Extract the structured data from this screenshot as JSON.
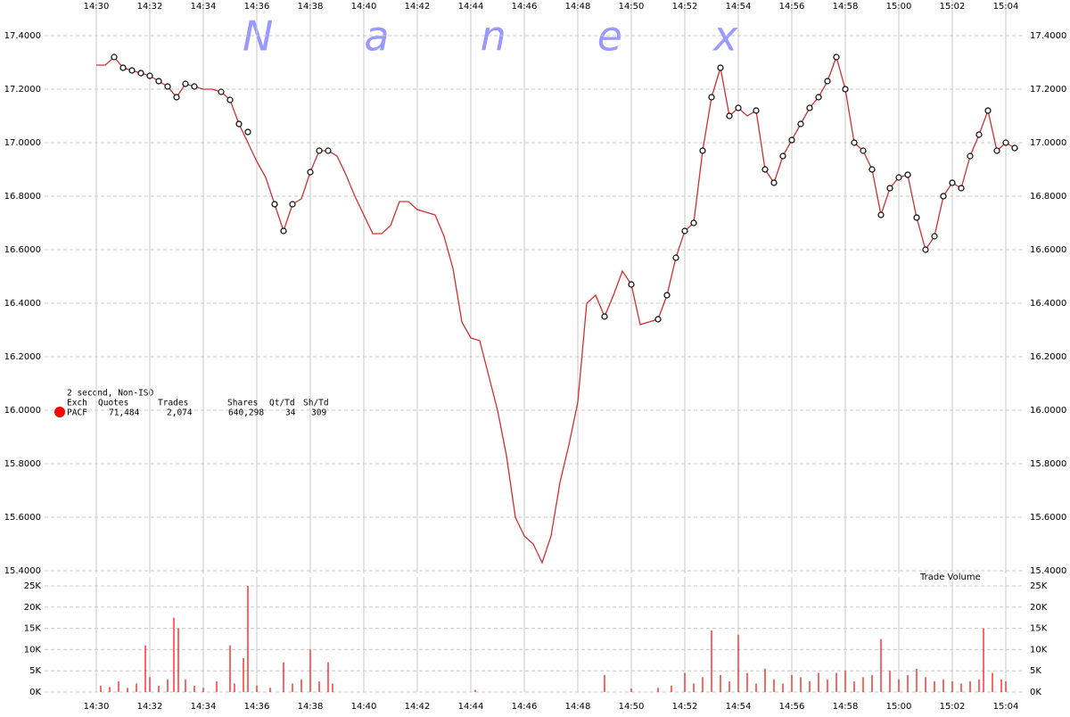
{
  "chart_data": [
    {
      "type": "line",
      "watermark": "Nanex",
      "legend_title": "2 second, Non-ISO",
      "legend_columns": [
        "Exch",
        "Quotes",
        "Trades",
        "Shares",
        "Qt/Td",
        "Sh/Td"
      ],
      "legend_row": [
        "71,484",
        "2,074",
        "640,298",
        "34",
        "309"
      ],
      "grid": true,
      "xlim": [
        "14:28:04",
        "15:04:36"
      ],
      "xticks": [
        "14:30",
        "14:32",
        "14:34",
        "14:36",
        "14:38",
        "14:40",
        "14:42",
        "14:44",
        "14:46",
        "14:48",
        "14:50",
        "14:52",
        "14:54",
        "14:56",
        "14:58",
        "15:00",
        "15:02",
        "15:04"
      ],
      "ylim": [
        15.39,
        17.47
      ],
      "yticks": [
        {
          "value": 15.4,
          "label": "15.4000"
        },
        {
          "value": 15.6,
          "label": "15.6000"
        },
        {
          "value": 15.8,
          "label": "15.8000"
        },
        {
          "value": 16.0,
          "label": "16.0000"
        },
        {
          "value": 16.2,
          "label": "16.2000"
        },
        {
          "value": 16.4,
          "label": "16.4000"
        },
        {
          "value": 16.6,
          "label": "16.6000"
        },
        {
          "value": 16.8,
          "label": "16.8000"
        },
        {
          "value": 17.0,
          "label": "17.0000"
        },
        {
          "value": 17.2,
          "label": "17.2000"
        },
        {
          "value": 17.4,
          "label": "17.4000"
        }
      ],
      "x": [
        "14:30:00",
        "14:30:20",
        "14:30:40",
        "14:31:00",
        "14:31:20",
        "14:31:40",
        "14:32:00",
        "14:32:20",
        "14:32:40",
        "14:33:00",
        "14:33:20",
        "14:33:40",
        "14:34:00",
        "14:34:20",
        "14:34:40",
        "14:35:00",
        "14:35:20",
        "14:35:40",
        "14:36:00",
        "14:36:20",
        "14:36:40",
        "14:37:00",
        "14:37:20",
        "14:37:40",
        "14:38:00",
        "14:38:20",
        "14:38:40",
        "14:39:00",
        "14:39:20",
        "14:39:40",
        "14:40:00",
        "14:40:20",
        "14:40:40",
        "14:41:00",
        "14:41:20",
        "14:41:40",
        "14:42:00",
        "14:42:20",
        "14:42:40",
        "14:43:00",
        "14:43:20",
        "14:43:40",
        "14:44:00",
        "14:44:20",
        "14:44:40",
        "14:45:00",
        "14:45:20",
        "14:45:40",
        "14:46:00",
        "14:46:20",
        "14:46:40",
        "14:47:00",
        "14:47:20",
        "14:47:40",
        "14:48:00",
        "14:48:20",
        "14:48:40",
        "14:49:00",
        "14:49:20",
        "14:49:40",
        "14:50:00",
        "14:50:20",
        "14:50:40",
        "14:51:00",
        "14:51:20",
        "14:51:40",
        "14:52:00",
        "14:52:20",
        "14:52:40",
        "14:53:00",
        "14:53:20",
        "14:53:40",
        "14:54:00",
        "14:54:20",
        "14:54:40",
        "14:55:00",
        "14:55:20",
        "14:55:40",
        "14:56:00",
        "14:56:20",
        "14:56:40",
        "14:57:00",
        "14:57:20",
        "14:57:40",
        "14:58:00",
        "14:58:20",
        "14:58:40",
        "14:59:00",
        "14:59:20",
        "14:59:40",
        "15:00:00",
        "15:00:20",
        "15:00:40",
        "15:01:00",
        "15:01:20",
        "15:01:40",
        "15:02:00",
        "15:02:20",
        "15:02:40",
        "15:03:00",
        "15:03:20",
        "15:03:40",
        "15:04:00",
        "15:04:20"
      ],
      "series": [
        {
          "name": "PACF",
          "color": "#d03030",
          "marker_color": "#ff0000",
          "values": [
            17.29,
            17.29,
            17.32,
            17.28,
            17.27,
            17.26,
            17.25,
            17.23,
            17.21,
            17.17,
            17.22,
            17.21,
            17.2,
            17.2,
            17.19,
            17.16,
            17.07,
            17.0,
            16.93,
            16.87,
            16.77,
            16.67,
            16.77,
            16.79,
            16.89,
            16.97,
            16.97,
            16.95,
            16.88,
            16.8,
            16.73,
            16.66,
            16.66,
            16.69,
            16.78,
            16.78,
            16.75,
            16.74,
            16.73,
            16.65,
            16.53,
            16.33,
            16.27,
            16.26,
            16.13,
            16.0,
            15.83,
            15.6,
            15.53,
            15.5,
            15.43,
            15.53,
            15.73,
            15.87,
            16.03,
            16.4,
            16.43,
            16.35,
            16.43,
            16.52,
            16.47,
            16.32,
            16.33,
            16.34,
            16.43,
            16.57,
            16.67,
            16.7,
            16.97,
            17.17,
            17.28,
            17.1,
            17.13,
            17.1,
            17.12,
            16.9,
            16.85,
            16.95,
            17.01,
            17.07,
            17.13,
            17.17,
            17.23,
            17.32,
            17.2,
            17.0,
            16.97,
            16.9,
            16.73,
            16.83,
            16.87,
            16.88,
            16.72,
            16.6,
            16.65,
            16.8,
            16.85,
            16.83,
            16.95,
            17.03,
            17.12,
            16.97,
            17.0,
            16.98
          ]
        }
      ],
      "trades": {
        "x": [
          "14:30:40",
          "14:31:00",
          "14:31:20",
          "14:31:40",
          "14:32:00",
          "14:32:20",
          "14:32:40",
          "14:33:00",
          "14:33:20",
          "14:33:40",
          "14:34:40",
          "14:35:00",
          "14:35:20",
          "14:35:40",
          "14:36:40",
          "14:37:00",
          "14:37:20",
          "14:38:00",
          "14:38:20",
          "14:38:40",
          "14:49:00",
          "14:50:00",
          "14:51:00",
          "14:51:20",
          "14:51:40",
          "14:52:00",
          "14:52:20",
          "14:52:40",
          "14:53:00",
          "14:53:20",
          "14:53:40",
          "14:54:00",
          "14:54:40",
          "14:55:00",
          "14:55:20",
          "14:55:40",
          "14:56:00",
          "14:56:20",
          "14:56:40",
          "14:57:00",
          "14:57:20",
          "14:57:40",
          "14:58:00",
          "14:58:20",
          "14:58:40",
          "14:59:00",
          "14:59:20",
          "14:59:40",
          "15:00:00",
          "15:00:20",
          "15:00:40",
          "15:01:00",
          "15:01:20",
          "15:01:40",
          "15:02:00",
          "15:02:20",
          "15:02:40",
          "15:03:00",
          "15:03:20",
          "15:03:40",
          "15:04:00",
          "15:04:20"
        ],
        "values": [
          17.32,
          17.28,
          17.27,
          17.26,
          17.25,
          17.23,
          17.21,
          17.17,
          17.22,
          17.21,
          17.19,
          17.16,
          17.07,
          17.04,
          16.77,
          16.67,
          16.77,
          16.89,
          16.97,
          16.97,
          16.35,
          16.47,
          16.34,
          16.43,
          16.57,
          16.67,
          16.7,
          16.97,
          17.17,
          17.28,
          17.1,
          17.13,
          17.12,
          16.9,
          16.85,
          16.95,
          17.01,
          17.07,
          17.13,
          17.17,
          17.23,
          17.32,
          17.2,
          17.0,
          16.97,
          16.9,
          16.73,
          16.83,
          16.87,
          16.88,
          16.72,
          16.6,
          16.65,
          16.8,
          16.85,
          16.83,
          16.95,
          17.03,
          17.12,
          16.97,
          17.0,
          16.98
        ]
      }
    },
    {
      "type": "bar",
      "title": "Trade Volume",
      "color": "#ff0000",
      "xlim": [
        "14:28:04",
        "15:04:36"
      ],
      "xticks": [
        "14:30",
        "14:32",
        "14:34",
        "14:36",
        "14:38",
        "14:40",
        "14:42",
        "14:44",
        "14:46",
        "14:48",
        "14:50",
        "14:52",
        "14:54",
        "14:56",
        "14:58",
        "15:00",
        "15:02",
        "15:04"
      ],
      "ylim": [
        0,
        25000
      ],
      "yticks": [
        {
          "value": 0,
          "label": "0K"
        },
        {
          "value": 5000,
          "label": "5K"
        },
        {
          "value": 10000,
          "label": "10K"
        },
        {
          "value": 15000,
          "label": "15K"
        },
        {
          "value": 20000,
          "label": "20K"
        },
        {
          "value": 25000,
          "label": "25K"
        }
      ],
      "x": [
        "14:30:10",
        "14:30:30",
        "14:30:50",
        "14:31:10",
        "14:31:30",
        "14:31:50",
        "14:32:00",
        "14:32:20",
        "14:32:40",
        "14:32:54",
        "14:33:04",
        "14:33:20",
        "14:33:40",
        "14:34:00",
        "14:34:30",
        "14:35:00",
        "14:35:10",
        "14:35:30",
        "14:35:40",
        "14:36:00",
        "14:36:30",
        "14:37:00",
        "14:37:20",
        "14:37:40",
        "14:38:00",
        "14:38:20",
        "14:38:40",
        "14:38:50",
        "14:44:10",
        "14:49:00",
        "14:50:00",
        "14:51:00",
        "14:51:30",
        "14:52:00",
        "14:52:20",
        "14:52:40",
        "14:53:00",
        "14:53:20",
        "14:53:40",
        "14:54:00",
        "14:54:20",
        "14:54:40",
        "14:55:00",
        "14:55:20",
        "14:55:40",
        "14:56:00",
        "14:56:20",
        "14:56:40",
        "14:57:00",
        "14:57:20",
        "14:57:40",
        "14:58:00",
        "14:58:20",
        "14:58:40",
        "14:59:00",
        "14:59:20",
        "14:59:40",
        "15:00:00",
        "15:00:20",
        "15:00:40",
        "15:01:00",
        "15:01:20",
        "15:01:40",
        "15:02:00",
        "15:02:20",
        "15:02:40",
        "15:03:00",
        "15:03:10",
        "15:03:30",
        "15:03:50",
        "15:04:00"
      ],
      "values": [
        1500,
        1200,
        2500,
        1000,
        2000,
        11000,
        3500,
        1500,
        3000,
        17500,
        15000,
        3000,
        1500,
        1000,
        2500,
        11000,
        2000,
        8000,
        25000,
        1500,
        1000,
        7000,
        2000,
        3000,
        10000,
        2500,
        7000,
        2000,
        500,
        4000,
        800,
        1000,
        1500,
        4500,
        2000,
        3500,
        14500,
        4000,
        2500,
        13500,
        4500,
        2000,
        5500,
        3000,
        2000,
        4000,
        3500,
        2500,
        4500,
        3000,
        4500,
        5000,
        2500,
        3500,
        4000,
        12500,
        5000,
        3000,
        4000,
        5500,
        3500,
        2500,
        3000,
        2500,
        2000,
        2500,
        3000,
        15000,
        4500,
        3000,
        2500
      ]
    }
  ]
}
